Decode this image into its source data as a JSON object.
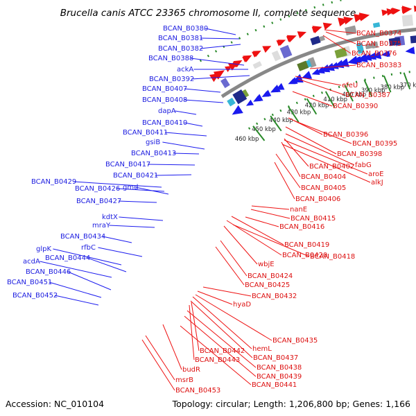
{
  "title": "Brucella canis ATCC 23365 chromosome II, complete sequence",
  "footer": {
    "accession": "Accession: NC_010104",
    "topology": "Topology: circular; Length: 1,206,800 bp; Genes: 1,166"
  },
  "colors": {
    "forward": "#1a1aee",
    "reverse": "#ee1111",
    "backbone": "#888888",
    "tick": "#2a8a2a"
  },
  "ticks": [
    {
      "label": "360 kbp",
      "kbp": 360
    },
    {
      "label": "370 kbp",
      "kbp": 370
    },
    {
      "label": "380 kbp",
      "kbp": 380
    },
    {
      "label": "390 kbp",
      "kbp": 390
    },
    {
      "label": "400 kbp",
      "kbp": 400
    },
    {
      "label": "410 kbp",
      "kbp": 410
    },
    {
      "label": "420 kbp",
      "kbp": 420
    },
    {
      "label": "430 kbp",
      "kbp": 430
    },
    {
      "label": "440 kbp",
      "kbp": 440
    },
    {
      "label": "450 kbp",
      "kbp": 450
    },
    {
      "label": "460 kbp",
      "kbp": 460
    }
  ],
  "left_labels": [
    "BCAN_B0380",
    "BCAN_B0381",
    "BCAN_B0382",
    "BCAN_B0388",
    "ackA",
    "BCAN_B0392",
    "BCAN_B0407",
    "BCAN_B0408",
    "dapA",
    "BCAN_B0410",
    "BCAN_B0411",
    "gsiB",
    "BCAN_B0413",
    "BCAN_B0417",
    "BCAN_B0421",
    "BCAN_B0429",
    "BCAN_B0426",
    "gmd",
    "BCAN_B0427",
    "kdtX",
    "mraY",
    "BCAN_B0434",
    "rfbC",
    "glpK",
    "BCAN_B0444",
    "acdA",
    "BCAN_B0446",
    "BCAN_B0451",
    "BCAN_B0452"
  ],
  "right_labels": [
    "BCAN_B0374",
    "BCAN_B0375",
    "BCAN_B0376",
    "BCAN_B0383",
    "efeU",
    "BCAN_B0387",
    "BCAN_B0390",
    "BCAN_B0396",
    "BCAN_B0395",
    "BCAN_B0398",
    "fabG",
    "BCAN_B0402",
    "aroE",
    "BCAN_B0404",
    "alkJ",
    "BCAN_B0405",
    "BCAN_B0406",
    "nanE",
    "BCAN_B0415",
    "BCAN_B0416",
    "BCAN_B0419",
    "BCAN_B0420",
    "BCAN_B0418",
    "wbjE",
    "BCAN_B0424",
    "BCAN_B0425",
    "BCAN_B0432",
    "hyaD",
    "BCAN_B0435",
    "hemL",
    "BCAN_B0437",
    "BCAN_B0442",
    "BCAN_B0443",
    "BCAN_B0438",
    "BCAN_B0439",
    "budR",
    "BCAN_B0441",
    "msrB",
    "BCAN_B0453"
  ]
}
